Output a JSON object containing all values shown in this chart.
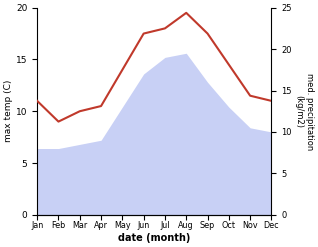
{
  "months": [
    "Jan",
    "Feb",
    "Mar",
    "Apr",
    "May",
    "Jun",
    "Jul",
    "Aug",
    "Sep",
    "Oct",
    "Nov",
    "Dec"
  ],
  "temperature": [
    11.0,
    9.0,
    10.0,
    10.5,
    14.0,
    17.5,
    18.0,
    19.5,
    17.5,
    14.5,
    11.5,
    11.0
  ],
  "precipitation": [
    8.0,
    8.0,
    8.5,
    9.0,
    13.0,
    17.0,
    19.0,
    19.5,
    16.0,
    13.0,
    10.5,
    10.0
  ],
  "temp_color": "#c0392b",
  "precip_fill_color": "#c8d0f5",
  "ylabel_left": "max temp (C)",
  "ylabel_right": "med. precipitation\n(kg/m2)",
  "xlabel": "date (month)",
  "ylim_left": [
    0,
    20
  ],
  "ylim_right": [
    0,
    25
  ],
  "yticks_left": [
    0,
    5,
    10,
    15,
    20
  ],
  "yticks_right": [
    0,
    5,
    10,
    15,
    20,
    25
  ],
  "bg_color": "#ffffff"
}
